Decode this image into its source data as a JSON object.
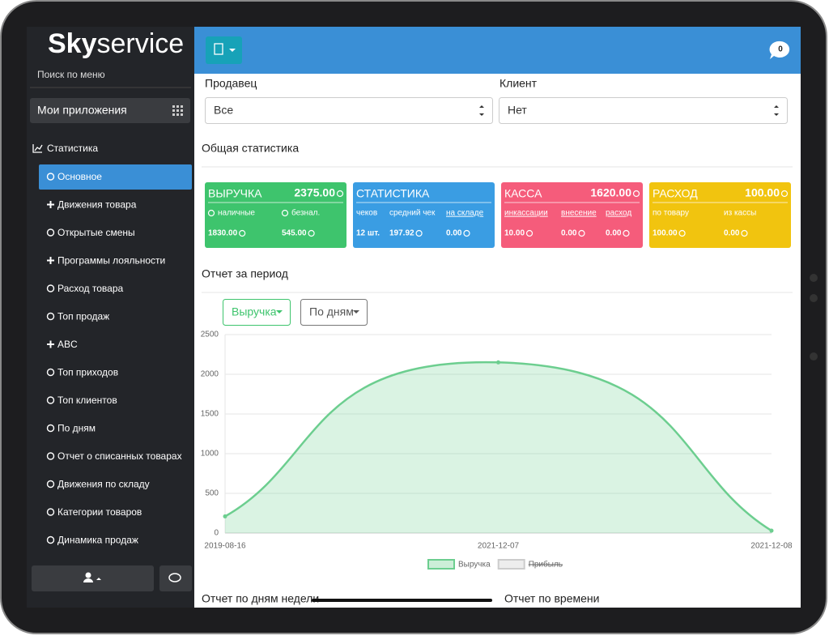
{
  "sidebar": {
    "logo_sky": "Sky",
    "logo_service": "service",
    "search": "Поиск по меню",
    "apps": "Мои приложения",
    "section": "Статистика",
    "items": [
      {
        "label": "Основное",
        "active": true
      },
      {
        "label": "Движения товара",
        "expandable": true
      },
      {
        "label": "Открытые смены"
      },
      {
        "label": "Программы лояльности",
        "expandable": true
      },
      {
        "label": "Расход товара"
      },
      {
        "label": "Топ продаж"
      },
      {
        "label": "ABC",
        "expandable": true
      },
      {
        "label": "Топ приходов"
      },
      {
        "label": "Топ клиентов"
      },
      {
        "label": "По дням"
      },
      {
        "label": "Отчет о списанных товарах"
      },
      {
        "label": "Движения по складу"
      },
      {
        "label": "Категории товаров"
      },
      {
        "label": "Динамика продаж"
      }
    ]
  },
  "notification_count": 0,
  "filters": {
    "seller_label": "Продавец",
    "seller_value": "Все",
    "client_label": "Клиент",
    "client_value": "Нет"
  },
  "general_title": "Общая статистика",
  "cards": [
    {
      "title": "ВЫРУЧКА",
      "total": "2375.00",
      "color": "#3ec46d",
      "labels": [
        {
          "text": "наличные"
        },
        {
          "text": "безнал."
        }
      ],
      "values": [
        {
          "text": "1830.00",
          "currency": true
        },
        {
          "text": "545.00",
          "currency": true
        }
      ]
    },
    {
      "title": "СТАТИСТИКА",
      "color": "#3a9de3",
      "labels": [
        {
          "text": "чеков"
        },
        {
          "text": "средний чек"
        },
        {
          "text": "на складе",
          "underline": true
        }
      ],
      "values": [
        {
          "text": "12 шт."
        },
        {
          "text": "197.92",
          "currency": true
        },
        {
          "text": "0.00",
          "currency": true
        }
      ]
    },
    {
      "title": "КАССА",
      "total": "1620.00",
      "color": "#f55c7b",
      "labels": [
        {
          "text": "инкассации",
          "underline": true
        },
        {
          "text": "внесение",
          "underline": true
        },
        {
          "text": "расход",
          "underline": true
        }
      ],
      "values": [
        {
          "text": "10.00",
          "currency": true
        },
        {
          "text": "0.00",
          "currency": true
        },
        {
          "text": "0.00",
          "currency": true
        }
      ]
    },
    {
      "title": "РАСХОД",
      "total": "100.00",
      "color": "#f1c40f",
      "labels": [
        {
          "text": "по товару"
        },
        {
          "text": "из кассы"
        }
      ],
      "values": [
        {
          "text": "100.00",
          "currency": true
        },
        {
          "text": "0.00",
          "currency": true
        }
      ]
    }
  ],
  "period_title": "Отчет за период",
  "dropdown_metric": "Выручка",
  "dropdown_period": "По дням",
  "chart_data": {
    "type": "line",
    "categories": [
      "2019-08-16",
      "2021-12-07",
      "2021-12-08"
    ],
    "series": [
      {
        "name": "Выручка",
        "color": "#6cce8f",
        "values": [
          210,
          2150,
          30
        ]
      },
      {
        "name": "Прибыль",
        "color": "#cccccc",
        "hidden": true
      }
    ],
    "ylim": [
      0,
      2500
    ],
    "yticks": [
      0,
      500,
      1000,
      1500,
      2000,
      2500
    ],
    "grid": true
  },
  "bottom_titles": [
    "Отчет по дням недели",
    "Отчет по времени"
  ]
}
